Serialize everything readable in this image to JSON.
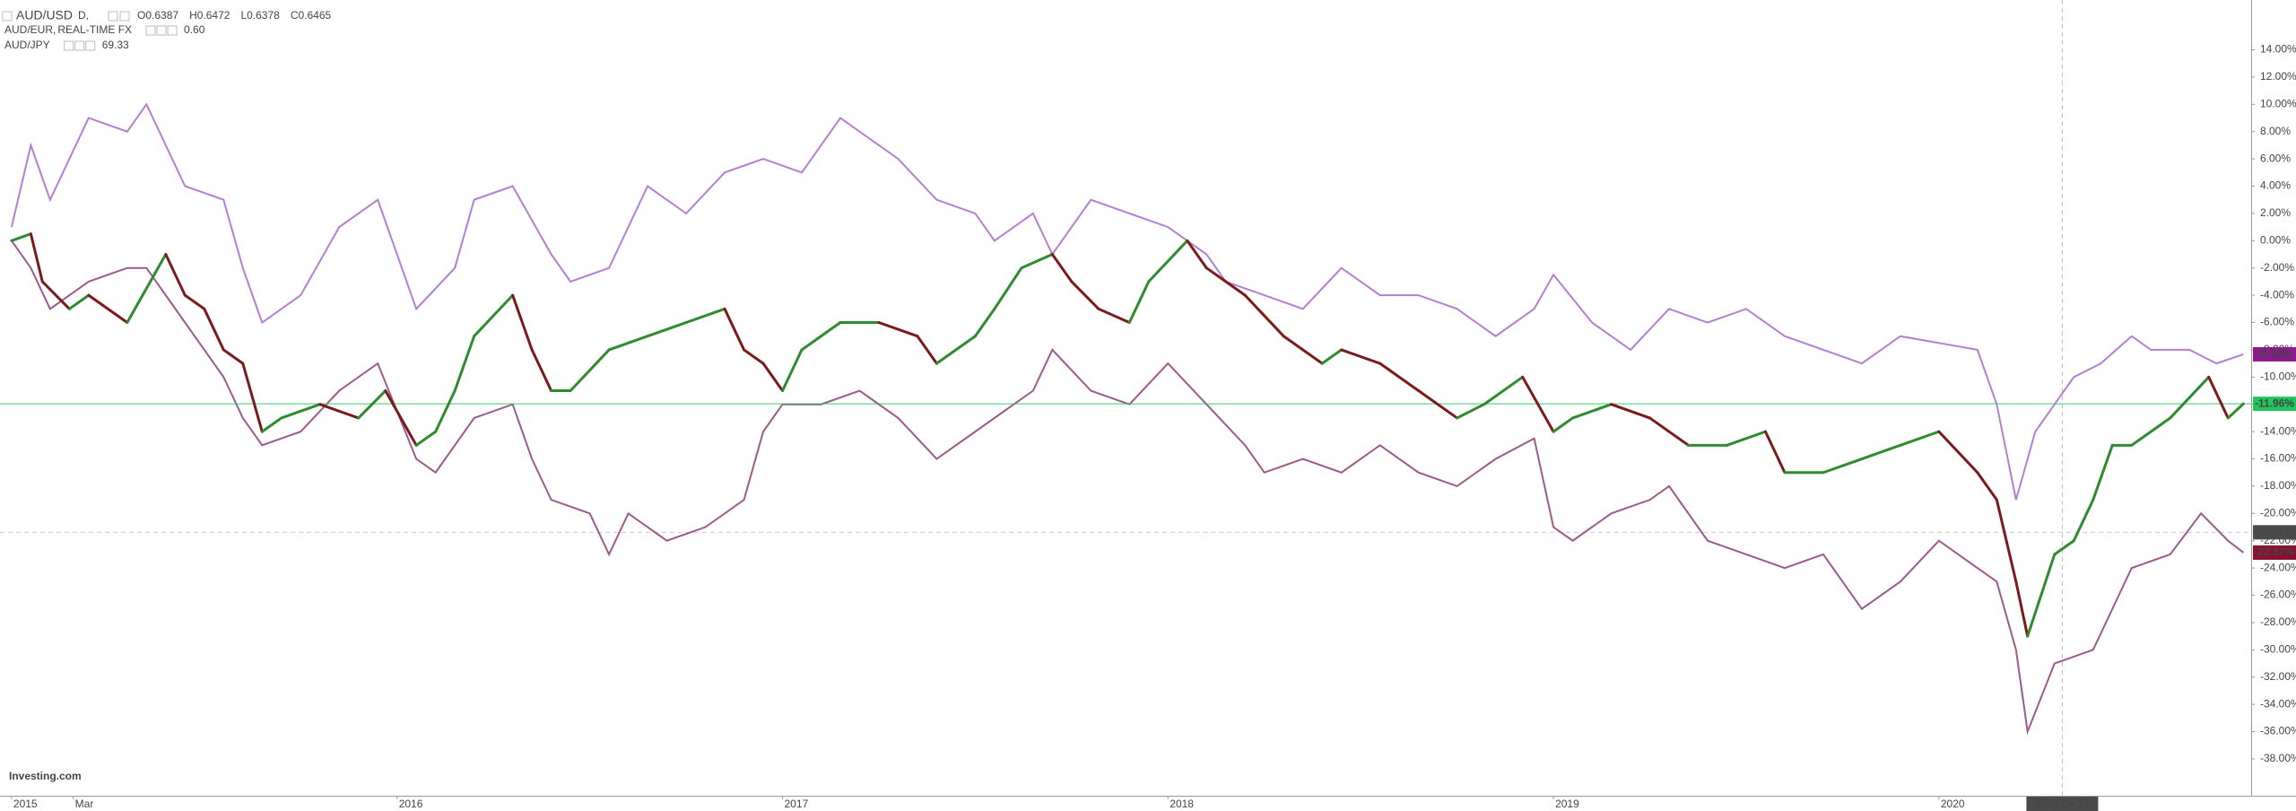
{
  "chart_data": {
    "type": "line",
    "header": {
      "interval": "D,",
      "ohlc_labels": [
        "O0.6387",
        "H0.6472",
        "L0.6378",
        "C0.6465"
      ]
    },
    "logo": "Investing.com",
    "xlim": [
      2014.97,
      2020.81
    ],
    "xticks": [
      {
        "value": 2015,
        "label": "2015"
      },
      {
        "value": 2015.16,
        "label": "Mar"
      },
      {
        "value": 2016,
        "label": "2016"
      },
      {
        "value": 2017,
        "label": "2017"
      },
      {
        "value": 2018,
        "label": "2018"
      },
      {
        "value": 2019,
        "label": "2019"
      },
      {
        "value": 2020,
        "label": "2020"
      }
    ],
    "ylim": [
      -40.7,
      17.65
    ],
    "yticks": [
      {
        "value": 14,
        "label": "14.00%"
      },
      {
        "value": 12,
        "label": "12.00%"
      },
      {
        "value": 10,
        "label": "10.00%"
      },
      {
        "value": 8,
        "label": "8.00%"
      },
      {
        "value": 6,
        "label": "6.00%"
      },
      {
        "value": 4,
        "label": "4.00%"
      },
      {
        "value": 2,
        "label": "2.00%"
      },
      {
        "value": 0,
        "label": "0.00%"
      },
      {
        "value": -2,
        "label": "-2.00%"
      },
      {
        "value": -4,
        "label": "-4.00%"
      },
      {
        "value": -6,
        "label": "-6.00%"
      },
      {
        "value": -8,
        "label": "-8.00%"
      },
      {
        "value": -10,
        "label": "-10.00%"
      },
      {
        "value": -12,
        "label": "-12.00%"
      },
      {
        "value": -14,
        "label": "-14.00%"
      },
      {
        "value": -16,
        "label": "-16.00%"
      },
      {
        "value": -18,
        "label": "-18.00%"
      },
      {
        "value": -20,
        "label": "-20.00%"
      },
      {
        "value": -22,
        "label": "-22.00%"
      },
      {
        "value": -24,
        "label": "-24.00%"
      },
      {
        "value": -26,
        "label": "-26.00%"
      },
      {
        "value": -28,
        "label": "-28.00%"
      },
      {
        "value": -30,
        "label": "-30.00%"
      },
      {
        "value": -32,
        "label": "-32.00%"
      },
      {
        "value": -34,
        "label": "-34.00%"
      },
      {
        "value": -36,
        "label": "-36.00%"
      },
      {
        "value": -38,
        "label": "-38.00%"
      }
    ],
    "grid": false,
    "crosshair": {
      "x": 2020.32,
      "x_label": "2020-04-27",
      "y": -21.3825
    },
    "series": [
      {
        "name": "AUD/USD",
        "style": "candles",
        "up_color": "#2e8b2e",
        "down_color": "#7a1a1a",
        "color": "#22c55e",
        "end_label": "-11.96%",
        "price_line": true,
        "x": [
          2015.0,
          2015.05,
          2015.08,
          2015.15,
          2015.2,
          2015.3,
          2015.4,
          2015.45,
          2015.5,
          2015.55,
          2015.6,
          2015.65,
          2015.7,
          2015.8,
          2015.9,
          2015.97,
          2016.05,
          2016.1,
          2016.15,
          2016.2,
          2016.3,
          2016.35,
          2016.4,
          2016.45,
          2016.55,
          2016.65,
          2016.75,
          2016.85,
          2016.9,
          2016.95,
          2017.0,
          2017.05,
          2017.15,
          2017.25,
          2017.35,
          2017.4,
          2017.5,
          2017.55,
          2017.62,
          2017.7,
          2017.75,
          2017.82,
          2017.9,
          2017.95,
          2018.05,
          2018.1,
          2018.2,
          2018.3,
          2018.4,
          2018.45,
          2018.55,
          2018.65,
          2018.75,
          2018.82,
          2018.92,
          2019.0,
          2019.05,
          2019.15,
          2019.25,
          2019.35,
          2019.45,
          2019.55,
          2019.6,
          2019.7,
          2019.8,
          2019.9,
          2020.0,
          2020.1,
          2020.15,
          2020.2,
          2020.23,
          2020.3,
          2020.35,
          2020.4,
          2020.45,
          2020.5,
          2020.6,
          2020.7,
          2020.75,
          2020.79
        ],
        "values": [
          0,
          0.5,
          -3,
          -5,
          -4,
          -6,
          -1,
          -4,
          -5,
          -8,
          -9,
          -14,
          -13,
          -12,
          -13,
          -11,
          -15,
          -14,
          -11,
          -7,
          -4,
          -8,
          -11,
          -11,
          -8,
          -7,
          -6,
          -5,
          -8,
          -9,
          -11,
          -8,
          -6,
          -6,
          -7,
          -9,
          -7,
          -5,
          -2,
          -1,
          -3,
          -5,
          -6,
          -3,
          0,
          -2,
          -4,
          -7,
          -9,
          -8,
          -9,
          -11,
          -13,
          -12,
          -10,
          -14,
          -13,
          -12,
          -13,
          -15,
          -15,
          -14,
          -17,
          -17,
          -16,
          -15,
          -14,
          -17,
          -19,
          -25,
          -29,
          -23,
          -22,
          -19,
          -15,
          -15,
          -13,
          -10,
          -13,
          -11.96
        ]
      },
      {
        "name": "AUD/EUR",
        "source": "REAL-TIME FX",
        "price": 0.6,
        "price_label": "0.60",
        "color": "#b47fd0",
        "end_label": "-8.33%",
        "end_color": "#8b1a8b",
        "x": [
          2015.0,
          2015.05,
          2015.1,
          2015.2,
          2015.3,
          2015.35,
          2015.45,
          2015.55,
          2015.6,
          2015.65,
          2015.75,
          2015.85,
          2015.95,
          2016.05,
          2016.15,
          2016.2,
          2016.3,
          2016.4,
          2016.45,
          2016.55,
          2016.65,
          2016.75,
          2016.85,
          2016.95,
          2017.05,
          2017.15,
          2017.2,
          2017.3,
          2017.4,
          2017.5,
          2017.55,
          2017.65,
          2017.7,
          2017.8,
          2017.9,
          2018.0,
          2018.1,
          2018.15,
          2018.25,
          2018.35,
          2018.45,
          2018.55,
          2018.65,
          2018.75,
          2018.85,
          2018.95,
          2019.0,
          2019.1,
          2019.2,
          2019.3,
          2019.4,
          2019.5,
          2019.6,
          2019.7,
          2019.8,
          2019.9,
          2020.0,
          2020.1,
          2020.15,
          2020.2,
          2020.25,
          2020.3,
          2020.35,
          2020.42,
          2020.5,
          2020.55,
          2020.65,
          2020.72,
          2020.79
        ],
        "values": [
          1,
          7,
          3,
          9,
          8,
          10,
          4,
          3,
          -2,
          -6,
          -4,
          1,
          3,
          -5,
          -2,
          3,
          4,
          -1,
          -3,
          -2,
          4,
          2,
          5,
          6,
          5,
          9,
          8,
          6,
          3,
          2,
          0,
          2,
          -1,
          3,
          2,
          1,
          -1,
          -3,
          -4,
          -5,
          -2,
          -4,
          -4,
          -5,
          -7,
          -5,
          -2.5,
          -6,
          -8,
          -5,
          -6,
          -5,
          -7,
          -8,
          -9,
          -7,
          -7.5,
          -8,
          -12,
          -19,
          -14,
          -12,
          -10,
          -9,
          -7,
          -8,
          -8,
          -9,
          -8.33
        ]
      },
      {
        "name": "AUD/JPY",
        "price": 69.33,
        "price_label": "69.33",
        "color": "#9c5a8c",
        "end_label": "-22.87%",
        "end_color": "#8b1030",
        "x": [
          2015.0,
          2015.05,
          2015.1,
          2015.2,
          2015.3,
          2015.35,
          2015.45,
          2015.55,
          2015.6,
          2015.65,
          2015.75,
          2015.85,
          2015.95,
          2016.05,
          2016.1,
          2016.2,
          2016.3,
          2016.35,
          2016.4,
          2016.5,
          2016.55,
          2016.6,
          2016.7,
          2016.8,
          2016.9,
          2016.95,
          2017.0,
          2017.1,
          2017.2,
          2017.3,
          2017.4,
          2017.5,
          2017.6,
          2017.65,
          2017.7,
          2017.8,
          2017.9,
          2018.0,
          2018.1,
          2018.2,
          2018.25,
          2018.35,
          2018.45,
          2018.55,
          2018.65,
          2018.75,
          2018.85,
          2018.95,
          2019.0,
          2019.05,
          2019.15,
          2019.25,
          2019.3,
          2019.4,
          2019.5,
          2019.6,
          2019.7,
          2019.8,
          2019.9,
          2020.0,
          2020.1,
          2020.15,
          2020.2,
          2020.23,
          2020.3,
          2020.4,
          2020.45,
          2020.5,
          2020.6,
          2020.68,
          2020.75,
          2020.79
        ],
        "values": [
          0,
          -2,
          -5,
          -3,
          -2,
          -2,
          -6,
          -10,
          -13,
          -15,
          -14,
          -11,
          -9,
          -16,
          -17,
          -13,
          -12,
          -16,
          -19,
          -20,
          -23,
          -20,
          -22,
          -21,
          -19,
          -14,
          -12,
          -12,
          -11,
          -13,
          -16,
          -14,
          -12,
          -11,
          -8,
          -11,
          -12,
          -9,
          -12,
          -15,
          -17,
          -16,
          -17,
          -15,
          -17,
          -18,
          -16,
          -14.5,
          -21,
          -22,
          -20,
          -19,
          -18,
          -22,
          -23,
          -24,
          -23,
          -27,
          -25,
          -22,
          -24,
          -25,
          -30,
          -36,
          -31,
          -30,
          -27,
          -24,
          -23,
          -20,
          -22,
          -22.87
        ]
      }
    ]
  }
}
